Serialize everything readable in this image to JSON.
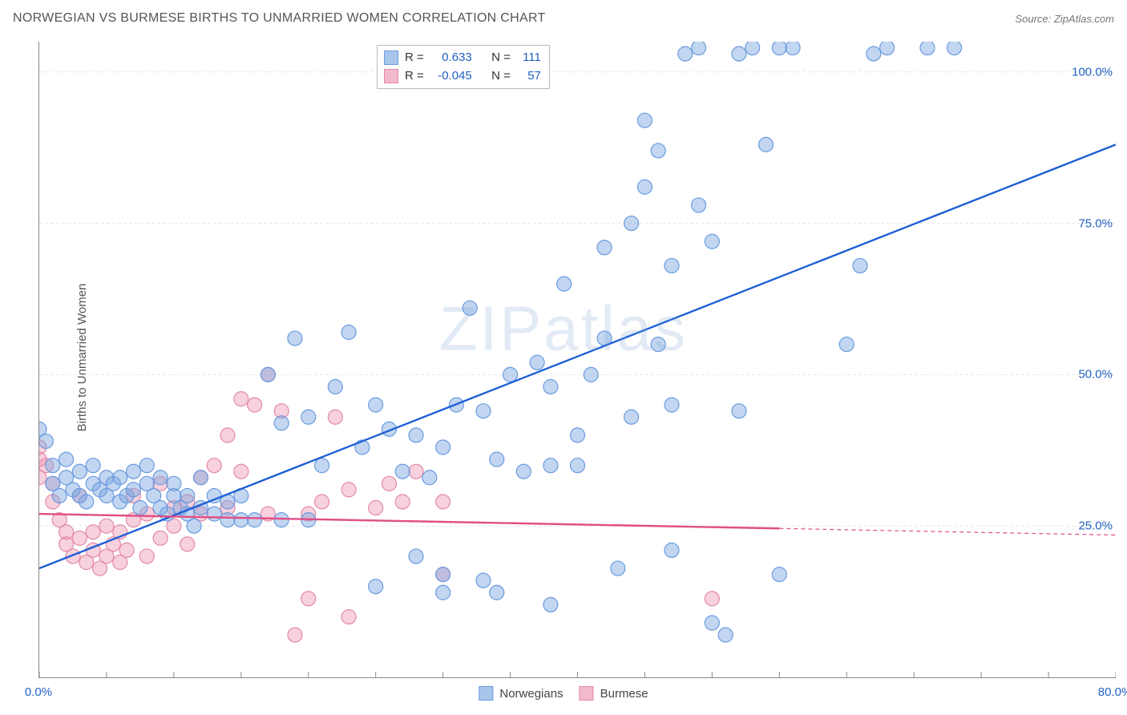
{
  "header": {
    "title": "NORWEGIAN VS BURMESE BIRTHS TO UNMARRIED WOMEN CORRELATION CHART",
    "source_prefix": "Source: ",
    "source_name": "ZipAtlas.com"
  },
  "y_axis_label": "Births to Unmarried Women",
  "watermark": "ZIPatlas",
  "chart": {
    "type": "scatter",
    "xlim": [
      0,
      80
    ],
    "ylim": [
      0,
      105
    ],
    "background_color": "#ffffff",
    "grid_color": "#e7e7e7",
    "grid_dash": "4,3",
    "axis_color": "#888888",
    "tick_color": "#888888",
    "x_ticks": [
      0,
      5,
      10,
      15,
      20,
      25,
      30,
      35,
      40,
      45,
      50,
      55,
      60,
      65,
      70,
      75,
      80
    ],
    "y_ticks_major": [
      25,
      50,
      75,
      100
    ],
    "y_tick_labels": [
      "25.0%",
      "50.0%",
      "75.0%",
      "100.0%"
    ],
    "x_tick_labels": {
      "0": "0.0%",
      "80": "80.0%"
    },
    "marker_radius": 9,
    "marker_stroke_width": 1.2,
    "trend_line_width": 2.4,
    "series": {
      "norwegians": {
        "label": "Norwegians",
        "fill_color": "rgba(120,165,225,0.45)",
        "stroke_color": "#6a9be0",
        "swatch_fill": "#a8c6ec",
        "swatch_border": "#6a9be0",
        "R": "0.633",
        "N": "111",
        "trend_color": "#1d5fd6",
        "trend_y_at_x0": 18,
        "trend_y_at_x80": 88,
        "trend_dash_from_x": null,
        "points": [
          [
            0,
            41
          ],
          [
            0.5,
            39
          ],
          [
            1,
            32
          ],
          [
            1,
            35
          ],
          [
            1.5,
            30
          ],
          [
            2,
            33
          ],
          [
            2,
            36
          ],
          [
            2.5,
            31
          ],
          [
            3,
            30
          ],
          [
            3,
            34
          ],
          [
            3.5,
            29
          ],
          [
            4,
            32
          ],
          [
            4,
            35
          ],
          [
            4.5,
            31
          ],
          [
            5,
            30
          ],
          [
            5,
            33
          ],
          [
            5.5,
            32
          ],
          [
            6,
            29
          ],
          [
            6,
            33
          ],
          [
            6.5,
            30
          ],
          [
            7,
            31
          ],
          [
            7,
            34
          ],
          [
            7.5,
            28
          ],
          [
            8,
            32
          ],
          [
            8,
            35
          ],
          [
            8.5,
            30
          ],
          [
            9,
            28
          ],
          [
            9,
            33
          ],
          [
            9.5,
            27
          ],
          [
            10,
            30
          ],
          [
            10,
            32
          ],
          [
            10.5,
            28
          ],
          [
            11,
            27
          ],
          [
            11,
            30
          ],
          [
            11.5,
            25
          ],
          [
            12,
            28
          ],
          [
            12,
            33
          ],
          [
            13,
            27
          ],
          [
            13,
            30
          ],
          [
            14,
            26
          ],
          [
            14,
            29
          ],
          [
            15,
            26
          ],
          [
            15,
            30
          ],
          [
            16,
            26
          ],
          [
            17,
            50
          ],
          [
            18,
            26
          ],
          [
            18,
            42
          ],
          [
            19,
            56
          ],
          [
            20,
            26
          ],
          [
            20,
            43
          ],
          [
            21,
            35
          ],
          [
            22,
            48
          ],
          [
            23,
            57
          ],
          [
            24,
            38
          ],
          [
            25,
            45
          ],
          [
            25,
            15
          ],
          [
            26,
            41
          ],
          [
            27,
            34
          ],
          [
            28,
            40
          ],
          [
            28,
            20
          ],
          [
            29,
            33
          ],
          [
            30,
            17
          ],
          [
            30,
            38
          ],
          [
            31,
            45
          ],
          [
            32,
            61
          ],
          [
            33,
            44
          ],
          [
            33,
            16
          ],
          [
            34,
            36
          ],
          [
            35,
            50
          ],
          [
            36,
            34
          ],
          [
            37,
            52
          ],
          [
            38,
            35
          ],
          [
            38,
            48
          ],
          [
            39,
            65
          ],
          [
            40,
            35
          ],
          [
            41,
            50
          ],
          [
            42,
            71
          ],
          [
            43,
            18
          ],
          [
            44,
            75
          ],
          [
            45,
            81
          ],
          [
            45,
            92
          ],
          [
            46,
            55
          ],
          [
            46,
            87
          ],
          [
            47,
            45
          ],
          [
            47,
            68
          ],
          [
            48,
            103
          ],
          [
            49,
            78
          ],
          [
            49,
            104
          ],
          [
            50,
            72
          ],
          [
            52,
            44
          ],
          [
            52,
            103
          ],
          [
            53,
            104
          ],
          [
            54,
            88
          ],
          [
            55,
            104
          ],
          [
            56,
            104
          ],
          [
            60,
            55
          ],
          [
            61,
            68
          ],
          [
            62,
            103
          ],
          [
            63,
            104
          ],
          [
            66,
            104
          ],
          [
            68,
            104
          ],
          [
            51,
            7
          ],
          [
            47,
            21
          ],
          [
            55,
            17
          ],
          [
            38,
            12
          ],
          [
            30,
            14
          ],
          [
            34,
            14
          ],
          [
            40,
            40
          ],
          [
            42,
            56
          ],
          [
            44,
            43
          ],
          [
            50,
            9
          ]
        ]
      },
      "burmese": {
        "label": "Burmese",
        "fill_color": "rgba(235,140,170,0.40)",
        "stroke_color": "#e38aa8",
        "swatch_fill": "#f2b9cc",
        "swatch_border": "#e38aa8",
        "R": "-0.045",
        "N": "57",
        "trend_color": "#e04f86",
        "trend_y_at_x0": 27,
        "trend_y_at_x80": 23.5,
        "trend_dash_from_x": 55,
        "points": [
          [
            0,
            38
          ],
          [
            0,
            36
          ],
          [
            0,
            33
          ],
          [
            0.5,
            35
          ],
          [
            1,
            29
          ],
          [
            1,
            32
          ],
          [
            1.5,
            26
          ],
          [
            2,
            24
          ],
          [
            2,
            22
          ],
          [
            2.5,
            20
          ],
          [
            3,
            23
          ],
          [
            3,
            30
          ],
          [
            3.5,
            19
          ],
          [
            4,
            21
          ],
          [
            4,
            24
          ],
          [
            4.5,
            18
          ],
          [
            5,
            20
          ],
          [
            5,
            25
          ],
          [
            5.5,
            22
          ],
          [
            6,
            19
          ],
          [
            6,
            24
          ],
          [
            6.5,
            21
          ],
          [
            7,
            26
          ],
          [
            7,
            30
          ],
          [
            8,
            27
          ],
          [
            8,
            20
          ],
          [
            9,
            32
          ],
          [
            9,
            23
          ],
          [
            10,
            28
          ],
          [
            10,
            25
          ],
          [
            11,
            22
          ],
          [
            11,
            29
          ],
          [
            12,
            33
          ],
          [
            12,
            27
          ],
          [
            13,
            35
          ],
          [
            14,
            40
          ],
          [
            14,
            28
          ],
          [
            15,
            46
          ],
          [
            15,
            34
          ],
          [
            16,
            45
          ],
          [
            17,
            50
          ],
          [
            17,
            27
          ],
          [
            18,
            44
          ],
          [
            19,
            7
          ],
          [
            20,
            27
          ],
          [
            21,
            29
          ],
          [
            22,
            43
          ],
          [
            23,
            10
          ],
          [
            23,
            31
          ],
          [
            25,
            28
          ],
          [
            26,
            32
          ],
          [
            27,
            29
          ],
          [
            28,
            34
          ],
          [
            30,
            17
          ],
          [
            30,
            29
          ],
          [
            50,
            13
          ],
          [
            20,
            13
          ]
        ]
      }
    }
  },
  "stats_box": {
    "R_label": "R =",
    "N_label": "N ="
  },
  "legend": {
    "items": [
      "norwegians",
      "burmese"
    ]
  }
}
